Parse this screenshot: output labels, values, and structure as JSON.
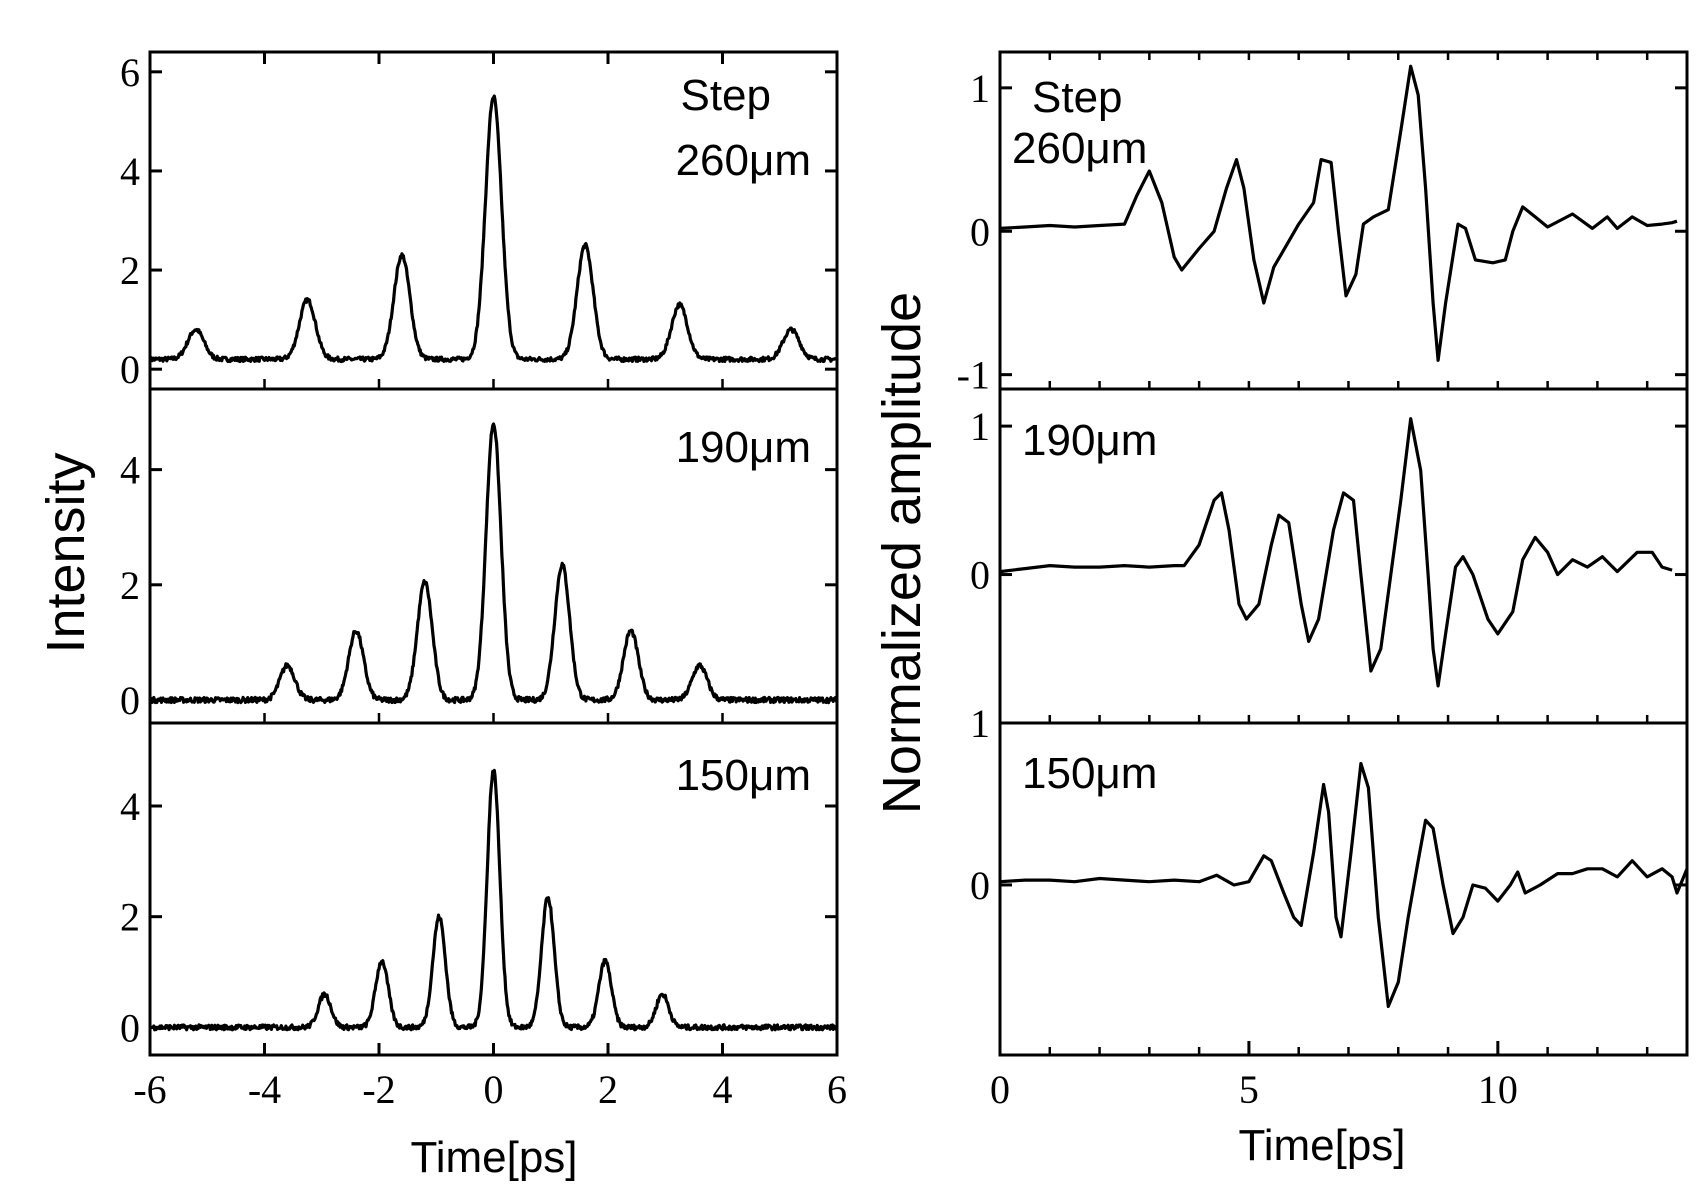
{
  "chart_data": [
    {
      "type": "line",
      "title": "",
      "xlabel": "Time[ps]",
      "ylabel": "Intensity",
      "xlim": [
        -6,
        6
      ],
      "xticks": [
        "-6",
        "-4",
        "-2",
        "0",
        "2",
        "4",
        "6"
      ],
      "grid": false,
      "panels": [
        {
          "annotation": [
            "Step",
            "260μm"
          ],
          "ylim": [
            -0.4,
            6.4
          ],
          "yticks": [
            "0",
            "2",
            "4",
            "6"
          ],
          "baseline": 0.2,
          "peak_width": 0.14,
          "peaks": [
            {
              "x": -5.2,
              "y": 0.8
            },
            {
              "x": -3.25,
              "y": 1.4
            },
            {
              "x": -1.6,
              "y": 2.3
            },
            {
              "x": 0,
              "y": 5.5
            },
            {
              "x": 1.6,
              "y": 2.5
            },
            {
              "x": 3.25,
              "y": 1.3
            },
            {
              "x": 5.2,
              "y": 0.8
            }
          ]
        },
        {
          "annotation": [
            "190μm"
          ],
          "ylim": [
            -0.4,
            5.4
          ],
          "yticks": [
            "0",
            "2",
            "4"
          ],
          "baseline": 0.0,
          "peak_width": 0.13,
          "peaks": [
            {
              "x": -3.6,
              "y": 0.6
            },
            {
              "x": -2.4,
              "y": 1.2
            },
            {
              "x": -1.2,
              "y": 2.05
            },
            {
              "x": 0,
              "y": 4.8
            },
            {
              "x": 1.2,
              "y": 2.35
            },
            {
              "x": 2.4,
              "y": 1.2
            },
            {
              "x": 3.6,
              "y": 0.6
            }
          ]
        },
        {
          "annotation": [
            "150μm"
          ],
          "ylim": [
            -0.5,
            5.5
          ],
          "yticks": [
            "0",
            "2",
            "4"
          ],
          "baseline": 0.0,
          "peak_width": 0.11,
          "peaks": [
            {
              "x": -2.95,
              "y": 0.6
            },
            {
              "x": -1.95,
              "y": 1.2
            },
            {
              "x": -0.95,
              "y": 2.0
            },
            {
              "x": 0,
              "y": 4.65
            },
            {
              "x": 0.95,
              "y": 2.35
            },
            {
              "x": 1.95,
              "y": 1.2
            },
            {
              "x": 2.95,
              "y": 0.6
            }
          ]
        }
      ]
    },
    {
      "type": "line",
      "title": "",
      "xlabel": "Time[ps]",
      "ylabel": "Normalized amplitude",
      "xlim": [
        0,
        13.8
      ],
      "xticks": [
        "0",
        "5",
        "10"
      ],
      "xtick_values": [
        0,
        5,
        10
      ],
      "grid": false,
      "panels": [
        {
          "annotation": [
            "Step",
            "260μm"
          ],
          "ylim": [
            -1.1,
            1.25
          ],
          "yticks": [
            "1",
            "0",
            "-1"
          ],
          "ytick_values": [
            1,
            0,
            -1
          ],
          "points": [
            [
              0,
              0.02
            ],
            [
              0.5,
              0.03
            ],
            [
              1.0,
              0.04
            ],
            [
              1.5,
              0.03
            ],
            [
              2.0,
              0.04
            ],
            [
              2.5,
              0.05
            ],
            [
              2.75,
              0.25
            ],
            [
              3.0,
              0.42
            ],
            [
              3.25,
              0.2
            ],
            [
              3.5,
              -0.18
            ],
            [
              3.65,
              -0.27
            ],
            [
              4.0,
              -0.12
            ],
            [
              4.3,
              0.0
            ],
            [
              4.55,
              0.3
            ],
            [
              4.75,
              0.5
            ],
            [
              4.9,
              0.3
            ],
            [
              5.1,
              -0.2
            ],
            [
              5.3,
              -0.5
            ],
            [
              5.5,
              -0.25
            ],
            [
              5.75,
              -0.1
            ],
            [
              6.0,
              0.05
            ],
            [
              6.3,
              0.2
            ],
            [
              6.45,
              0.5
            ],
            [
              6.65,
              0.48
            ],
            [
              6.8,
              0.0
            ],
            [
              6.95,
              -0.45
            ],
            [
              7.15,
              -0.3
            ],
            [
              7.3,
              0.05
            ],
            [
              7.5,
              0.1
            ],
            [
              7.8,
              0.15
            ],
            [
              8.05,
              0.7
            ],
            [
              8.25,
              1.15
            ],
            [
              8.4,
              0.95
            ],
            [
              8.55,
              0.3
            ],
            [
              8.7,
              -0.5
            ],
            [
              8.8,
              -0.9
            ],
            [
              8.95,
              -0.5
            ],
            [
              9.2,
              0.05
            ],
            [
              9.35,
              0.02
            ],
            [
              9.55,
              -0.2
            ],
            [
              9.9,
              -0.22
            ],
            [
              10.15,
              -0.2
            ],
            [
              10.3,
              0.0
            ],
            [
              10.5,
              0.17
            ],
            [
              10.75,
              0.1
            ],
            [
              11.0,
              0.03
            ],
            [
              11.5,
              0.12
            ],
            [
              11.9,
              0.02
            ],
            [
              12.2,
              0.1
            ],
            [
              12.4,
              0.02
            ],
            [
              12.7,
              0.1
            ],
            [
              13.0,
              0.04
            ],
            [
              13.3,
              0.05
            ],
            [
              13.5,
              0.06
            ],
            [
              13.6,
              0.07
            ]
          ]
        },
        {
          "annotation": [
            "190μm"
          ],
          "ylim": [
            -1.0,
            1.25
          ],
          "yticks": [
            "1",
            "0"
          ],
          "ytick_values": [
            1,
            0
          ],
          "points": [
            [
              0,
              0.02
            ],
            [
              0.5,
              0.04
            ],
            [
              1.0,
              0.06
            ],
            [
              1.5,
              0.05
            ],
            [
              2.0,
              0.05
            ],
            [
              2.5,
              0.06
            ],
            [
              3.0,
              0.05
            ],
            [
              3.5,
              0.06
            ],
            [
              3.7,
              0.06
            ],
            [
              4.0,
              0.2
            ],
            [
              4.3,
              0.5
            ],
            [
              4.45,
              0.55
            ],
            [
              4.6,
              0.3
            ],
            [
              4.8,
              -0.2
            ],
            [
              4.95,
              -0.3
            ],
            [
              5.2,
              -0.2
            ],
            [
              5.45,
              0.2
            ],
            [
              5.6,
              0.4
            ],
            [
              5.8,
              0.35
            ],
            [
              6.05,
              -0.2
            ],
            [
              6.2,
              -0.45
            ],
            [
              6.4,
              -0.3
            ],
            [
              6.7,
              0.3
            ],
            [
              6.9,
              0.55
            ],
            [
              7.1,
              0.5
            ],
            [
              7.25,
              0.0
            ],
            [
              7.45,
              -0.65
            ],
            [
              7.65,
              -0.5
            ],
            [
              7.85,
              0.0
            ],
            [
              8.05,
              0.5
            ],
            [
              8.25,
              1.05
            ],
            [
              8.45,
              0.7
            ],
            [
              8.6,
              0.0
            ],
            [
              8.7,
              -0.5
            ],
            [
              8.8,
              -0.75
            ],
            [
              8.95,
              -0.4
            ],
            [
              9.15,
              0.05
            ],
            [
              9.3,
              0.12
            ],
            [
              9.5,
              0.0
            ],
            [
              9.8,
              -0.3
            ],
            [
              10.0,
              -0.4
            ],
            [
              10.3,
              -0.25
            ],
            [
              10.5,
              0.1
            ],
            [
              10.75,
              0.25
            ],
            [
              11.0,
              0.15
            ],
            [
              11.2,
              0.0
            ],
            [
              11.5,
              0.1
            ],
            [
              11.8,
              0.05
            ],
            [
              12.1,
              0.12
            ],
            [
              12.4,
              0.02
            ],
            [
              12.8,
              0.15
            ],
            [
              13.1,
              0.15
            ],
            [
              13.3,
              0.05
            ],
            [
              13.5,
              0.03
            ]
          ]
        },
        {
          "annotation": [
            "150μm"
          ],
          "ylim": [
            -1.05,
            1.0
          ],
          "yticks": [
            "1",
            "0"
          ],
          "ytick_values": [
            1,
            0
          ],
          "points": [
            [
              0,
              0.02
            ],
            [
              0.5,
              0.03
            ],
            [
              1.0,
              0.03
            ],
            [
              1.5,
              0.02
            ],
            [
              2.0,
              0.04
            ],
            [
              2.5,
              0.03
            ],
            [
              3.0,
              0.02
            ],
            [
              3.5,
              0.03
            ],
            [
              4.0,
              0.02
            ],
            [
              4.35,
              0.06
            ],
            [
              4.7,
              0.0
            ],
            [
              5.0,
              0.02
            ],
            [
              5.3,
              0.18
            ],
            [
              5.45,
              0.15
            ],
            [
              5.7,
              -0.05
            ],
            [
              5.9,
              -0.2
            ],
            [
              6.05,
              -0.25
            ],
            [
              6.3,
              0.2
            ],
            [
              6.5,
              0.62
            ],
            [
              6.6,
              0.45
            ],
            [
              6.75,
              -0.2
            ],
            [
              6.85,
              -0.32
            ],
            [
              7.05,
              0.2
            ],
            [
              7.25,
              0.75
            ],
            [
              7.4,
              0.6
            ],
            [
              7.6,
              -0.2
            ],
            [
              7.8,
              -0.75
            ],
            [
              8.0,
              -0.6
            ],
            [
              8.2,
              -0.2
            ],
            [
              8.4,
              0.15
            ],
            [
              8.55,
              0.4
            ],
            [
              8.7,
              0.35
            ],
            [
              8.9,
              0.0
            ],
            [
              9.1,
              -0.3
            ],
            [
              9.3,
              -0.2
            ],
            [
              9.5,
              0.0
            ],
            [
              9.75,
              -0.02
            ],
            [
              10.0,
              -0.1
            ],
            [
              10.25,
              0.0
            ],
            [
              10.4,
              0.08
            ],
            [
              10.55,
              -0.05
            ],
            [
              10.85,
              0.0
            ],
            [
              11.2,
              0.07
            ],
            [
              11.5,
              0.07
            ],
            [
              11.8,
              0.1
            ],
            [
              12.1,
              0.1
            ],
            [
              12.4,
              0.05
            ],
            [
              12.7,
              0.15
            ],
            [
              13.0,
              0.05
            ],
            [
              13.3,
              0.1
            ],
            [
              13.5,
              0.05
            ],
            [
              13.6,
              -0.05
            ],
            [
              13.8,
              0.1
            ]
          ]
        }
      ]
    }
  ]
}
